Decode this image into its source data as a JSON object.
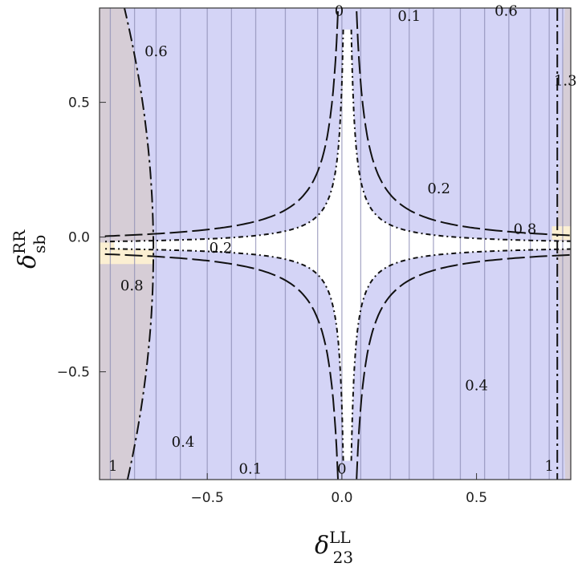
{
  "chart_data": {
    "type": "contour",
    "xlabel": "δ",
    "xlabel_sup": "LL",
    "xlabel_sub": "23",
    "ylabel": "δ",
    "ylabel_sup": "RR",
    "ylabel_sub": "sb",
    "xlim": [
      -0.9,
      0.85
    ],
    "ylim": [
      -0.9,
      0.85
    ],
    "xticks": [
      -0.5,
      0.0,
      0.5
    ],
    "xtick_labels": [
      "−0.5",
      "0.0",
      "0.5"
    ],
    "yticks": [
      -0.5,
      0.0,
      0.5
    ],
    "ytick_labels": [
      "−0.5",
      "0.0",
      "0.5"
    ],
    "grid": false,
    "colors": {
      "allowed_region": "#d4d4f6",
      "excluded_region_left": "#d6cdd6",
      "excluded_region_right": "#d6cdd6",
      "small_band": "#fbefd2",
      "white_region": "#ffffff",
      "contour_line": "#8f8fb6"
    },
    "vertical_contour_levels": [
      {
        "x": -0.86,
        "level": "1"
      },
      {
        "x": -0.77,
        "level": "0.8"
      },
      {
        "x": -0.69,
        "level": "0.6"
      },
      {
        "x": -0.6,
        "level": "0.4"
      },
      {
        "x": -0.5,
        "level": ""
      },
      {
        "x": -0.41,
        "level": "0.2"
      },
      {
        "x": -0.32,
        "level": "0.1"
      },
      {
        "x": -0.21,
        "level": ""
      },
      {
        "x": -0.09,
        "level": ""
      },
      {
        "x": 0.0,
        "level": "0"
      },
      {
        "x": 0.07,
        "level": ""
      },
      {
        "x": 0.18,
        "level": ""
      },
      {
        "x": 0.25,
        "level": "0.1"
      },
      {
        "x": 0.34,
        "level": "0.2"
      },
      {
        "x": 0.44,
        "level": ""
      },
      {
        "x": 0.53,
        "level": "0.4"
      },
      {
        "x": 0.62,
        "level": "0.6"
      },
      {
        "x": 0.7,
        "level": ""
      },
      {
        "x": 0.77,
        "level": "0.8"
      },
      {
        "x": 0.82,
        "level": "1"
      }
    ],
    "contour_labels": [
      {
        "text": "0",
        "x": -0.01,
        "y": 0.84
      },
      {
        "text": "0.1",
        "x": 0.25,
        "y": 0.82
      },
      {
        "text": "0.6",
        "x": 0.61,
        "y": 0.84
      },
      {
        "text": "0.6",
        "x": -0.69,
        "y": 0.69
      },
      {
        "text": "1.3",
        "x": 0.83,
        "y": 0.58
      },
      {
        "text": "0.2",
        "x": 0.36,
        "y": 0.18
      },
      {
        "text": "0.8",
        "x": 0.68,
        "y": 0.03
      },
      {
        "text": "0.2",
        "x": -0.45,
        "y": -0.04
      },
      {
        "text": "0.8",
        "x": -0.78,
        "y": -0.18
      },
      {
        "text": "0.4",
        "x": 0.5,
        "y": -0.55
      },
      {
        "text": "0.4",
        "x": -0.59,
        "y": -0.76
      },
      {
        "text": "0.1",
        "x": -0.34,
        "y": -0.86
      },
      {
        "text": "0",
        "x": 0.0,
        "y": -0.86
      },
      {
        "text": "1",
        "x": -0.85,
        "y": -0.85
      },
      {
        "text": "1",
        "x": 0.77,
        "y": -0.85
      }
    ]
  }
}
